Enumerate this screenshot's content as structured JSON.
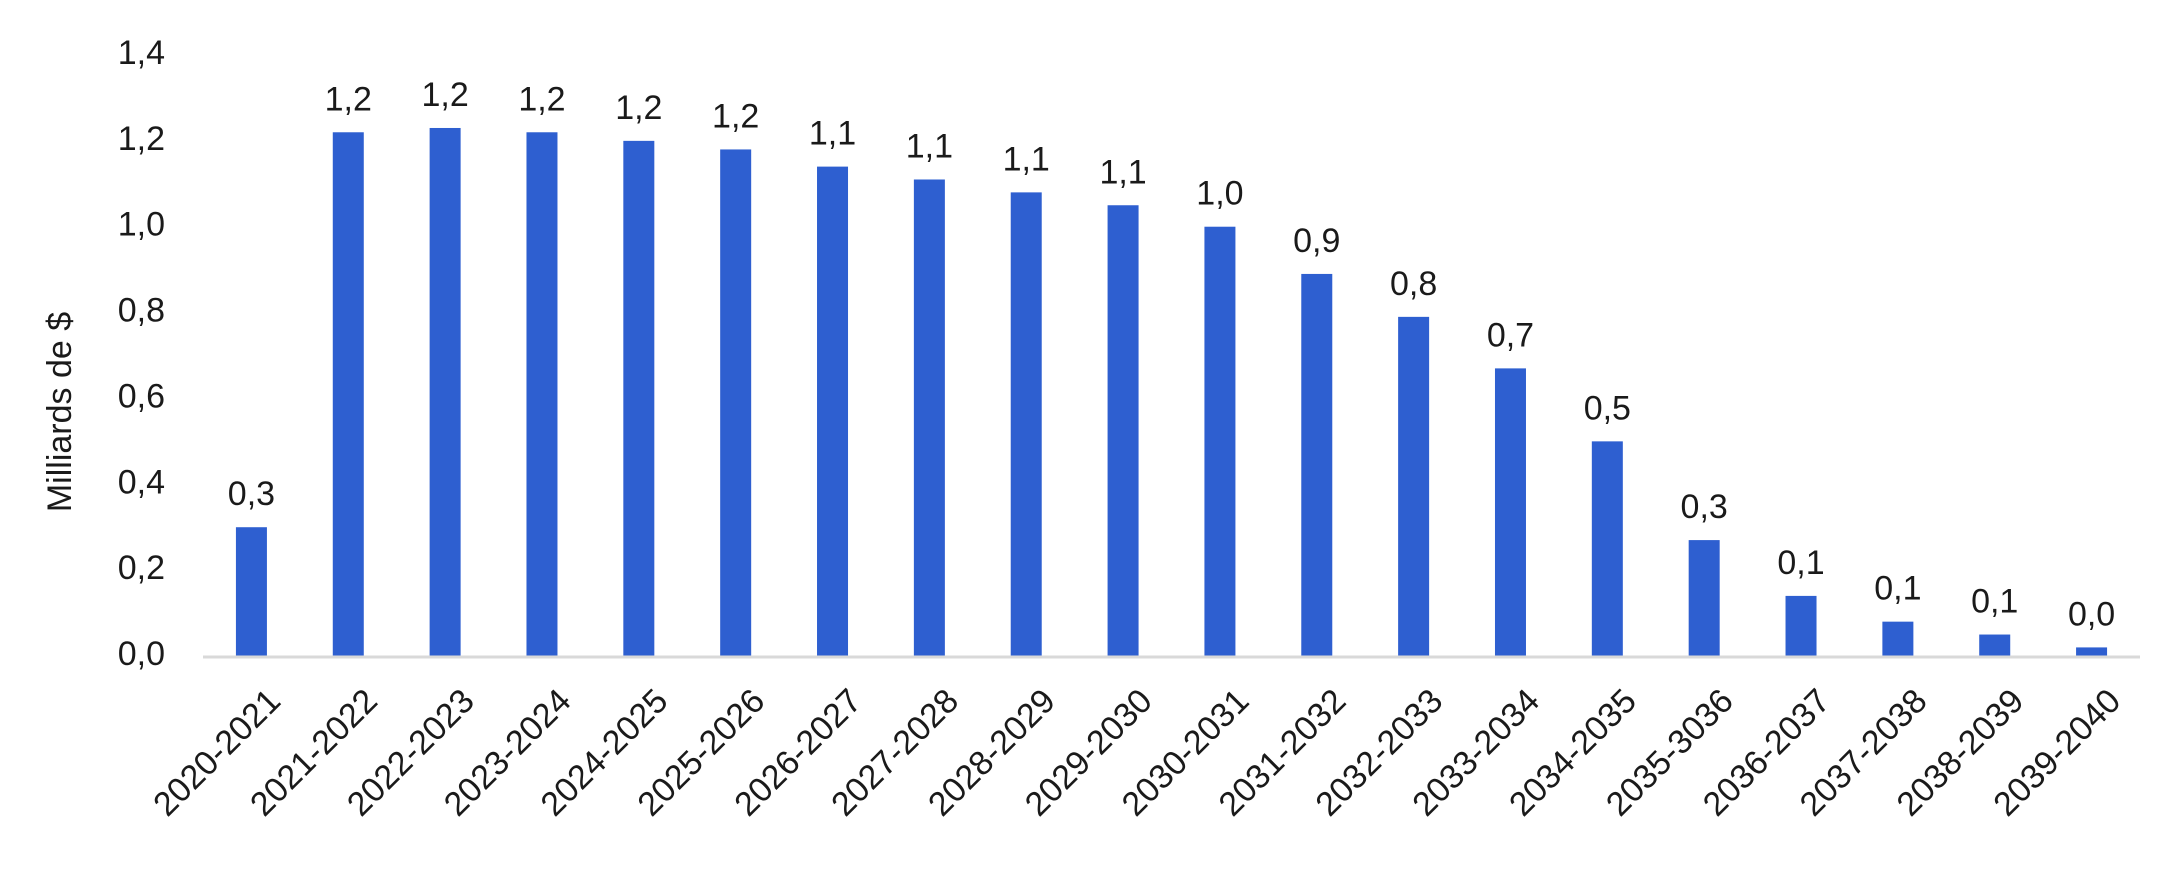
{
  "chart_data": {
    "type": "bar",
    "xlabel": "",
    "ylabel": "Milliards de $",
    "ylim": [
      0,
      1.4
    ],
    "yticks": [
      "0,0",
      "0,2",
      "0,4",
      "0,6",
      "0,8",
      "1,0",
      "1,2",
      "1,4"
    ],
    "grid": false,
    "legend": "none",
    "bar_color": "#2e5fd0",
    "axis_color": "#d9d9d9",
    "categories": [
      "2020-2021",
      "2021-2022",
      "2022-2023",
      "2023-2024",
      "2024-2025",
      "2025-2026",
      "2026-2027",
      "2027-2028",
      "2028-2029",
      "2029-2030",
      "2030-2031",
      "2031-2032",
      "2032-2033",
      "2033-2034",
      "2034-2035",
      "2035-3036",
      "2036-2037",
      "2037-2038",
      "2038-2039",
      "2039-2040"
    ],
    "values": [
      0.3,
      1.22,
      1.23,
      1.22,
      1.2,
      1.18,
      1.14,
      1.11,
      1.08,
      1.05,
      1.0,
      0.89,
      0.79,
      0.67,
      0.5,
      0.27,
      0.14,
      0.08,
      0.05,
      0.02
    ],
    "data_labels": [
      "0,3",
      "1,2",
      "1,2",
      "1,2",
      "1,2",
      "1,2",
      "1,1",
      "1,1",
      "1,1",
      "1,1",
      "1,0",
      "0,9",
      "0,8",
      "0,7",
      "0,5",
      "0,3",
      "0,1",
      "0,1",
      "0,1",
      "0,0"
    ]
  }
}
